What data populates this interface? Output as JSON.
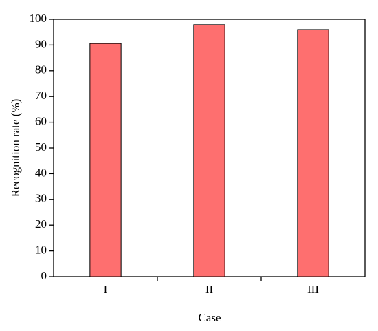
{
  "chart_data": {
    "type": "bar",
    "x_label": "Case",
    "y_label": "Recognition rate (%)",
    "categories": [
      "I",
      "II",
      "III"
    ],
    "values": [
      90.6,
      97.9,
      96.0
    ],
    "color": "#fe6f6f",
    "ylim": [
      0,
      100
    ],
    "yticks": [
      0,
      10,
      20,
      30,
      40,
      50,
      60,
      70,
      80,
      90,
      100
    ],
    "grid": false
  }
}
